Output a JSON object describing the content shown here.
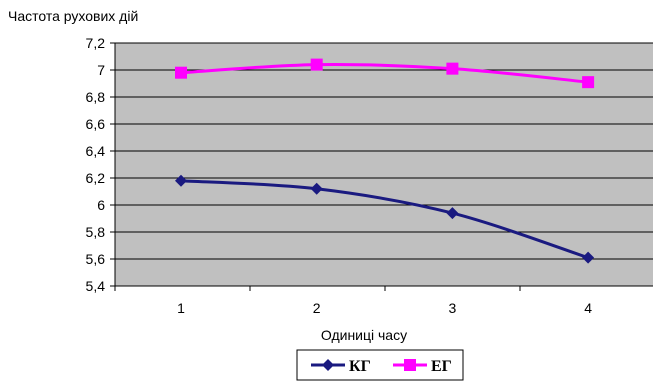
{
  "chart_data": {
    "type": "line",
    "ylabel": "Частота рухових дій",
    "xlabel": "Одиниці часу",
    "categories": [
      "1",
      "2",
      "3",
      "4"
    ],
    "ylim": [
      5.4,
      7.2
    ],
    "yticks": [
      "5,4",
      "5,6",
      "5,8",
      "6",
      "6,2",
      "6,4",
      "6,6",
      "6,8",
      "7",
      "7,2"
    ],
    "grid": "horizontal",
    "legend_position": "bottom",
    "series": [
      {
        "name": "КГ",
        "values": [
          6.18,
          6.12,
          5.94,
          5.61
        ],
        "color": "#1a1a80",
        "marker": "diamond"
      },
      {
        "name": "ЕГ",
        "values": [
          6.98,
          7.04,
          7.01,
          6.91
        ],
        "color": "#ff00ff",
        "marker": "square"
      }
    ],
    "plot_background": "#c0c0c0"
  }
}
